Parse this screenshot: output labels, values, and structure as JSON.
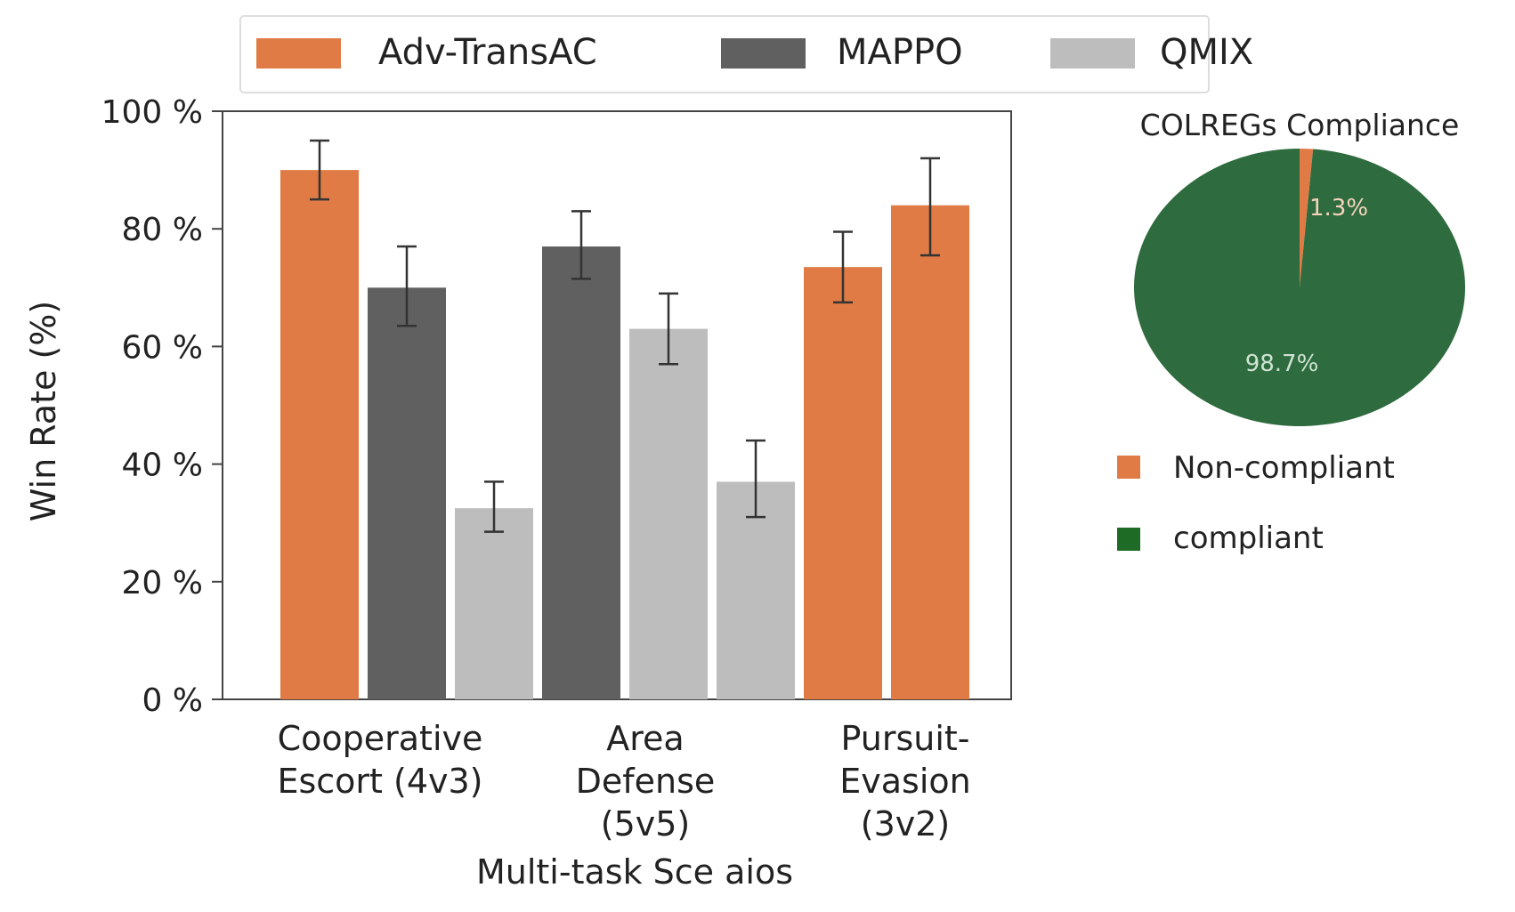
{
  "chart_data": [
    {
      "type": "bar",
      "ylabel": "Win Rate (%)",
      "xlabel": "Multi-task Sce aios",
      "ylim": [
        0,
        100
      ],
      "yticks": [
        0,
        20,
        40,
        60,
        80,
        100
      ],
      "ytick_suffix": " %",
      "legend_position": "top",
      "legend": [
        {
          "name": "Adv-TransAC",
          "color": "#E07B45"
        },
        {
          "name": "MAPPO",
          "color": "#606060"
        },
        {
          "name": "QMIX",
          "color": "#BDBDBD"
        }
      ],
      "categories": [
        {
          "lines": [
            "Cooperative",
            "Escort (4v3)"
          ]
        },
        {
          "lines": [
            "Area",
            "Defense",
            "(5v5)"
          ]
        },
        {
          "lines": [
            "Pursuit-",
            "Evasion",
            "(3v2)"
          ]
        }
      ],
      "bars": [
        {
          "category": 0,
          "series": "Adv-TransAC",
          "value": 90,
          "err_low": 85,
          "err_high": 95
        },
        {
          "category": 0,
          "series": "MAPPO",
          "value": 70,
          "err_low": 63.5,
          "err_high": 77
        },
        {
          "category": 0,
          "series": "QMIX",
          "value": 32.5,
          "err_low": 28.5,
          "err_high": 37
        },
        {
          "category": 1,
          "series": "MAPPO",
          "value": 77,
          "err_low": 71.5,
          "err_high": 83
        },
        {
          "category": 1,
          "series": "QMIX",
          "value": 63,
          "err_low": 57,
          "err_high": 69
        },
        {
          "category": 1,
          "series": "QMIX",
          "value": 37,
          "err_low": 31,
          "err_high": 44
        },
        {
          "category": 2,
          "series": "Adv-TransAC",
          "value": 73.5,
          "err_low": 67.5,
          "err_high": 79.5
        },
        {
          "category": 2,
          "series": "Adv-TransAC",
          "value": 84,
          "err_low": 75.5,
          "err_high": 92
        }
      ]
    },
    {
      "type": "pie",
      "title": "COLREGs Compliance",
      "slices": [
        {
          "label": "Non-compliant",
          "value": 1.3,
          "display": "1.3%",
          "color": "#E07B45"
        },
        {
          "label": "compliant",
          "value": 98.7,
          "display": "98.7%",
          "color": "#2E6B3E"
        }
      ],
      "legend": [
        {
          "label": "Non-compliant",
          "color": "#E07B45"
        },
        {
          "label": "compliant",
          "color": "#1E6B26"
        }
      ]
    }
  ]
}
